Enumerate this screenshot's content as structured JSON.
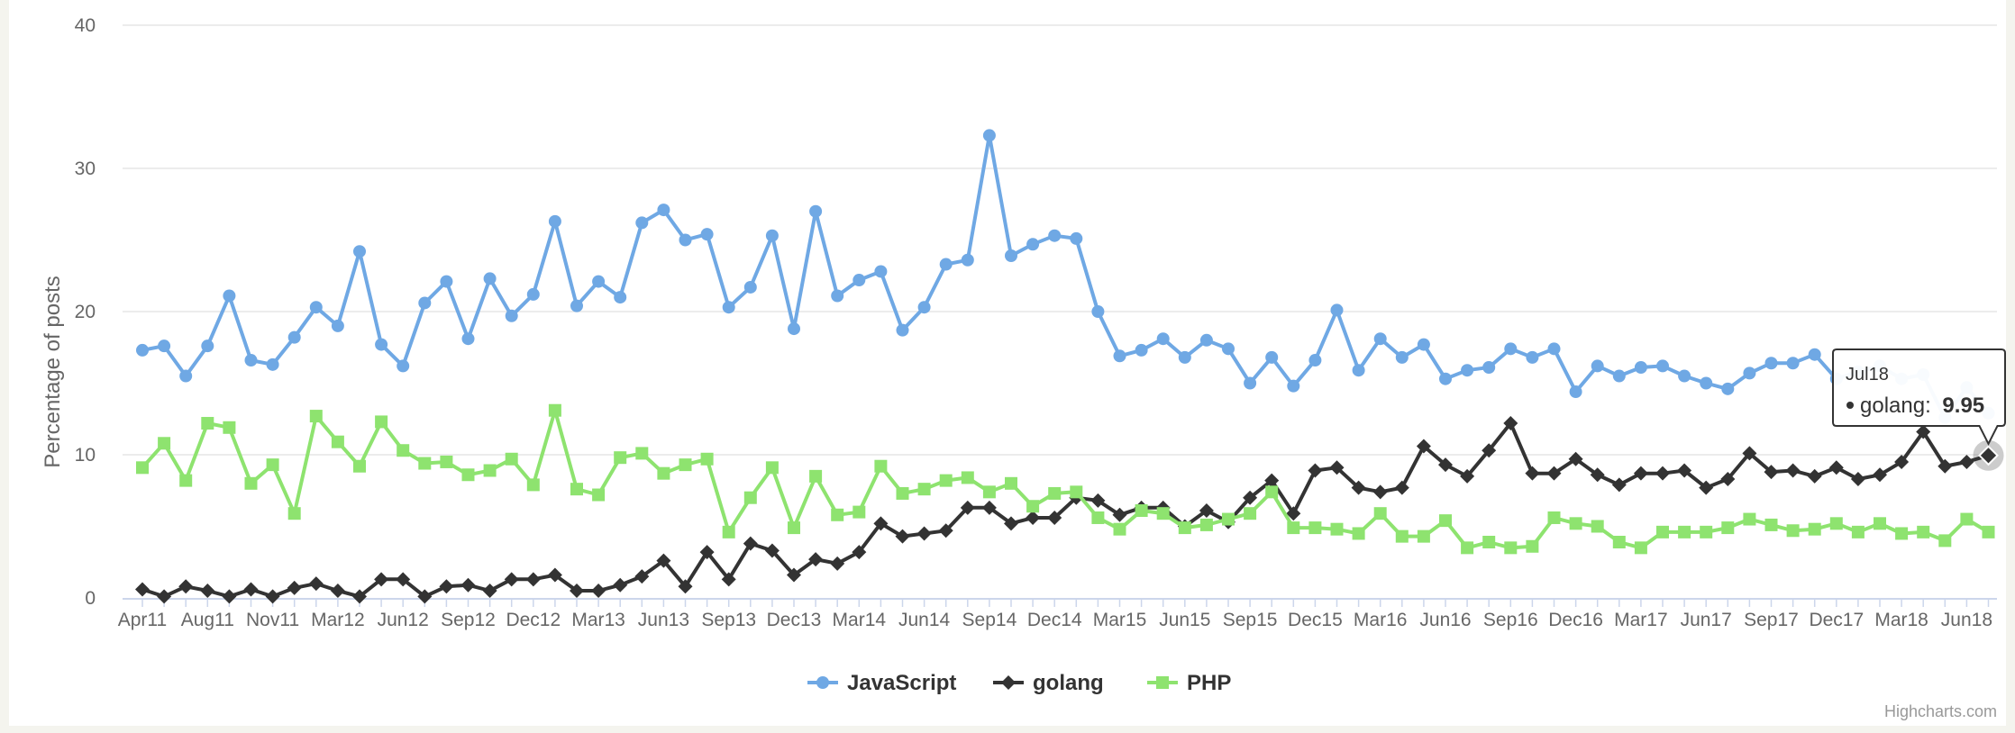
{
  "chart_data": {
    "type": "line",
    "ylabel": "Percentage of posts",
    "ylim": [
      0,
      40
    ],
    "yticks": [
      0,
      10,
      20,
      30,
      40
    ],
    "x_tick_labels": [
      "Apr11",
      "Aug11",
      "Nov11",
      "Mar12",
      "Jun12",
      "Sep12",
      "Dec12",
      "Mar13",
      "Jun13",
      "Sep13",
      "Dec13",
      "Mar14",
      "Jun14",
      "Sep14",
      "Dec14",
      "Mar15",
      "Jun15",
      "Sep15",
      "Dec15",
      "Mar16",
      "Jun16",
      "Sep16",
      "Dec16",
      "Mar17",
      "Jun17",
      "Sep17",
      "Dec17",
      "Mar18",
      "Jun18"
    ],
    "grid": true,
    "legend_position": "bottom-center",
    "series": [
      {
        "name": "JavaScript",
        "color": "#6fa8e4",
        "marker": "circle",
        "values": [
          17.3,
          17.6,
          15.5,
          17.6,
          21.1,
          16.6,
          16.3,
          18.2,
          20.3,
          19.0,
          24.2,
          17.7,
          16.2,
          20.6,
          22.1,
          18.1,
          22.3,
          19.7,
          21.2,
          26.3,
          20.4,
          22.1,
          21.0,
          26.2,
          27.1,
          25.0,
          25.4,
          20.3,
          21.7,
          25.3,
          18.8,
          27.0,
          21.1,
          22.2,
          22.8,
          18.7,
          20.3,
          23.3,
          23.6,
          32.3,
          23.9,
          24.7,
          25.3,
          25.1,
          20.0,
          16.9,
          17.3,
          18.1,
          16.8,
          18.0,
          17.4,
          15.0,
          16.8,
          14.8,
          16.6,
          20.1,
          15.9,
          18.1,
          16.8,
          17.7,
          15.3,
          15.9,
          16.1,
          17.4,
          16.8,
          17.4,
          14.4,
          16.2,
          15.5,
          16.1,
          16.2,
          15.5,
          15.0,
          14.6,
          15.7,
          16.4,
          16.4,
          17.0,
          15.3,
          15.8,
          16.2,
          15.3,
          15.6,
          12.6,
          14.7,
          12.9
        ]
      },
      {
        "name": "golang",
        "color": "#333333",
        "marker": "diamond",
        "values": [
          0.6,
          0.1,
          0.8,
          0.5,
          0.1,
          0.6,
          0.1,
          0.7,
          1.0,
          0.5,
          0.1,
          1.3,
          1.3,
          0.1,
          0.8,
          0.9,
          0.5,
          1.3,
          1.3,
          1.6,
          0.5,
          0.5,
          0.9,
          1.5,
          2.6,
          0.8,
          3.2,
          1.3,
          3.8,
          3.3,
          1.6,
          2.7,
          2.4,
          3.2,
          5.2,
          4.3,
          4.5,
          4.7,
          6.3,
          6.3,
          5.2,
          5.6,
          5.6,
          7.0,
          6.8,
          5.8,
          6.3,
          6.3,
          5.0,
          6.1,
          5.3,
          7.0,
          8.2,
          5.9,
          8.9,
          9.1,
          7.7,
          7.4,
          7.7,
          10.6,
          9.3,
          8.5,
          10.3,
          12.2,
          8.7,
          8.7,
          9.7,
          8.6,
          7.9,
          8.7,
          8.7,
          8.9,
          7.7,
          8.3,
          10.1,
          8.8,
          8.9,
          8.5,
          9.1,
          8.3,
          8.6,
          9.5,
          11.6,
          9.2,
          9.5,
          9.95
        ]
      },
      {
        "name": "PHP",
        "color": "#8ee36f",
        "marker": "square",
        "values": [
          9.1,
          10.8,
          8.2,
          12.2,
          11.9,
          8.0,
          9.3,
          5.9,
          12.7,
          10.9,
          9.2,
          12.3,
          10.3,
          9.4,
          9.5,
          8.6,
          8.9,
          9.7,
          7.9,
          13.1,
          7.6,
          7.2,
          9.8,
          10.1,
          8.7,
          9.3,
          9.7,
          4.6,
          7.0,
          9.1,
          4.9,
          8.5,
          5.8,
          6.0,
          9.2,
          7.3,
          7.6,
          8.2,
          8.4,
          7.4,
          8.0,
          6.4,
          7.3,
          7.4,
          5.6,
          4.8,
          6.1,
          5.9,
          4.9,
          5.1,
          5.5,
          5.9,
          7.4,
          4.9,
          4.9,
          4.8,
          4.5,
          5.9,
          4.3,
          4.3,
          5.4,
          3.5,
          3.9,
          3.5,
          3.6,
          5.6,
          5.2,
          5.0,
          3.9,
          3.5,
          4.6,
          4.6,
          4.6,
          4.9,
          5.5,
          5.1,
          4.7,
          4.8,
          5.2,
          4.6,
          5.2,
          4.5,
          4.6,
          4.0,
          5.5,
          4.6
        ]
      }
    ],
    "tooltip": {
      "header": "Jul18",
      "series_name": "golang:",
      "value": "9.95"
    },
    "credit": "Highcharts.com"
  }
}
